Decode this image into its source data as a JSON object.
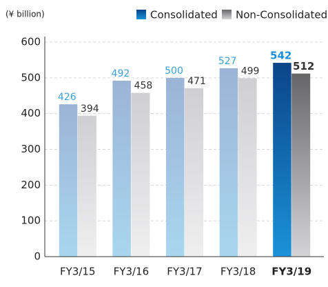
{
  "chart_data": {
    "type": "bar",
    "unit_label": "(¥ billion)",
    "categories": [
      "FY3/15",
      "FY3/16",
      "FY3/17",
      "FY3/18",
      "FY3/19"
    ],
    "series": [
      {
        "name": "Consolidated",
        "color": "#3a9fd8",
        "values": [
          426,
          492,
          500,
          527,
          542
        ]
      },
      {
        "name": "Non-Consolidated",
        "color": "#333333",
        "values": [
          394,
          458,
          471,
          499,
          512
        ]
      }
    ],
    "highlight_index": 4,
    "ylim": [
      0,
      600
    ],
    "yticks": [
      0,
      100,
      200,
      300,
      400,
      500,
      600
    ],
    "grid": true,
    "legend": "top"
  }
}
